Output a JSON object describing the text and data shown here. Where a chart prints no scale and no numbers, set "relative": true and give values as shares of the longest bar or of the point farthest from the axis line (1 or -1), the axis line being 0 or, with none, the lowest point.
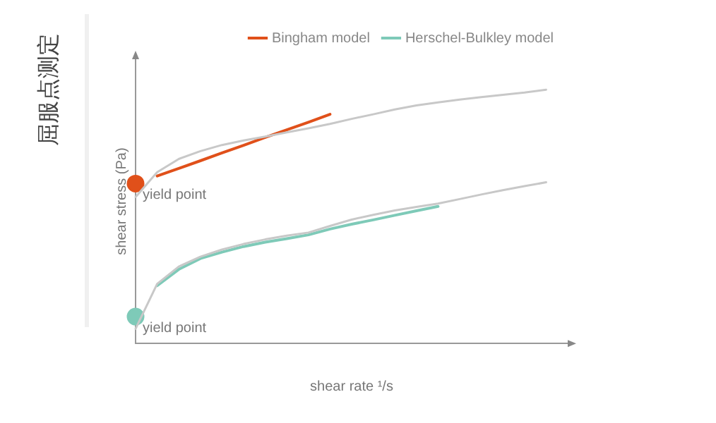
{
  "chart_data": {
    "type": "line",
    "title": "屈服点测定",
    "xlabel": "shear rate ¹/s",
    "ylabel": "shear stress (Pa)",
    "relative": true,
    "legend": "top right",
    "grid": false,
    "marker": "none",
    "line_style": "solid",
    "categories": [
      null,
      null,
      null,
      null,
      null,
      null,
      null,
      null,
      null,
      null,
      null,
      null,
      null,
      null,
      null,
      null,
      null,
      null,
      null,
      null,
      null
    ],
    "series": [
      {
        "color": "#c8c8c8",
        "values": [
          0.577,
          0.675,
          0.727,
          0.758,
          0.782,
          0.8,
          0.815,
          0.832,
          0.848,
          0.865,
          0.885,
          0.903,
          0.922,
          0.938,
          0.95,
          0.961,
          0.971,
          0.98,
          0.989,
          1,
          null
        ]
      },
      {
        "color": "#c8c8c8",
        "values": [
          0.058,
          0.235,
          0.303,
          0.342,
          0.37,
          0.392,
          0.41,
          0.425,
          0.437,
          0.463,
          0.488,
          0.507,
          0.524,
          0.538,
          0.551,
          0.569,
          0.587,
          0.604,
          0.62,
          0.635,
          null
        ]
      },
      {
        "name": "Bingham model",
        "color": "#e0501a",
        "values": [
          null,
          0.66,
          0.69,
          0.72,
          0.751,
          0.781,
          0.812,
          0.842,
          0.872,
          0.903,
          null,
          null,
          null,
          null,
          null,
          null,
          null,
          null,
          null,
          null,
          null
        ]
      },
      {
        "name": "Herschel-Bulkley model",
        "color": "#7ecab8",
        "values": [
          null,
          0.228,
          0.292,
          0.335,
          0.36,
          0.382,
          0.399,
          0.413,
          0.428,
          0.451,
          0.47,
          0.487,
          0.505,
          0.523,
          0.54,
          null,
          null,
          null,
          null,
          null,
          null
        ]
      },
      {
        "type": "line",
        "marker": "circle",
        "color": "#e0501a",
        "values": [
          0.63,
          null,
          null,
          null,
          null,
          null,
          null,
          null,
          null,
          null,
          null,
          null,
          null,
          null,
          null,
          null,
          null,
          null,
          null,
          null,
          null
        ]
      },
      {
        "type": "line",
        "marker": "circle",
        "color": "#7ecab8",
        "values": [
          0.106,
          null,
          null,
          null,
          null,
          null,
          null,
          null,
          null,
          null,
          null,
          null,
          null,
          null,
          null,
          null,
          null,
          null,
          null,
          null,
          null
        ]
      }
    ],
    "annotations": [
      "yield point",
      "yield point"
    ]
  }
}
